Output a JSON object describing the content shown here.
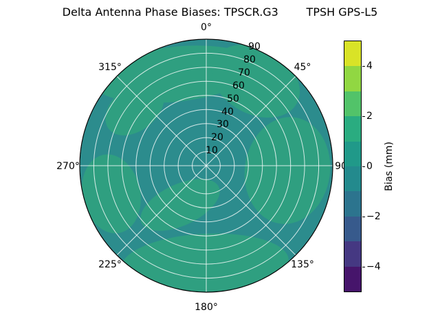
{
  "figure": {
    "title": "Delta Antenna Phase Biases: TPSCR.G3        TPSH GPS-L5"
  },
  "polar_axes": {
    "theta_labels": [
      "0°",
      "45°",
      "90",
      "135°",
      "180°",
      "225°",
      "270°",
      "315°"
    ],
    "r_labels": [
      "10",
      "20",
      "30",
      "40",
      "50",
      "60",
      "70",
      "80",
      "90"
    ]
  },
  "colorbar": {
    "label": "Bias (mm)",
    "tick_labels": [
      "4",
      "2",
      "0",
      "−2",
      "−4"
    ],
    "min": -5,
    "max": 5,
    "colormap": "viridis",
    "band_colors_bottom_to_top": [
      "#46156b",
      "#453882",
      "#375a8c",
      "#2c748e",
      "#238a8d",
      "#209989",
      "#2aac80",
      "#52c369",
      "#91d742",
      "#d9e327"
    ]
  },
  "colors": {
    "base": "#2c8c8d",
    "patch": "#2f9f80",
    "grid": "rgba(255,255,255,0.8)"
  },
  "chart_data": {
    "type": "heatmap",
    "projection": "polar",
    "title": "Delta Antenna Phase Biases: TPSCR.G3        TPSH GPS-L5",
    "antennas": [
      "TPSCR.G3",
      "TPSH"
    ],
    "signal": "GPS-L5",
    "theta_ticks_deg": [
      0,
      45,
      90,
      135,
      180,
      225,
      270,
      315
    ],
    "theta_zero_location": "top",
    "theta_direction": "clockwise",
    "r_ticks": [
      10,
      20,
      30,
      40,
      50,
      60,
      70,
      80,
      90
    ],
    "r_max": 90,
    "colorbar": {
      "label": "Bias (mm)",
      "range": [
        -5,
        5
      ],
      "ticks": [
        -4,
        -2,
        0,
        2,
        4
      ],
      "colormap": "viridis",
      "levels_mm": 1
    },
    "values_summary": {
      "overall_range_mm": [
        -1,
        2
      ],
      "dominant_band_mm": [
        -1,
        0
      ],
      "patch_band_mm": [
        0,
        2
      ],
      "green_patches": [
        {
          "azimuth_deg_range": [
            300,
            30
          ],
          "r_range": [
            45,
            90
          ]
        },
        {
          "azimuth_deg_range": [
            75,
            125
          ],
          "r_range": [
            25,
            85
          ]
        },
        {
          "azimuth_deg_range": [
            155,
            215
          ],
          "r_range": [
            55,
            90
          ]
        },
        {
          "azimuth_deg_range": [
            245,
            285
          ],
          "r_range": [
            40,
            80
          ]
        },
        {
          "azimuth_deg_range": [
            195,
            250
          ],
          "r_range": [
            10,
            45
          ]
        }
      ]
    }
  }
}
